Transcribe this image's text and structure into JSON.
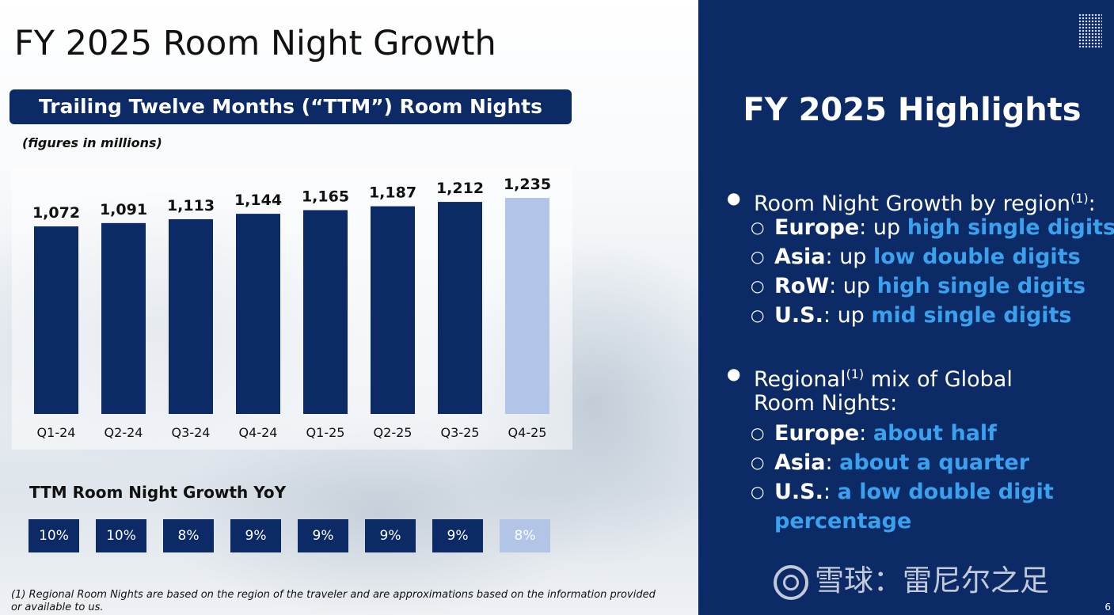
{
  "page": {
    "title": "FY 2025 Room Night Growth",
    "page_number": "6"
  },
  "chart_data": {
    "type": "bar",
    "title": "Trailing Twelve Months (“TTM”) Room Nights",
    "subtitle": "(figures in millions)",
    "categories": [
      "Q1-24",
      "Q2-24",
      "Q3-24",
      "Q4-24",
      "Q1-25",
      "Q2-25",
      "Q3-25",
      "Q4-25"
    ],
    "values": [
      1072,
      1091,
      1113,
      1144,
      1165,
      1187,
      1212,
      1235
    ],
    "value_labels": [
      "1,072",
      "1,091",
      "1,113",
      "1,144",
      "1,165",
      "1,187",
      "1,212",
      "1,235"
    ],
    "highlight_index": 7,
    "colors": {
      "bar": "#0c2b66",
      "highlight": "#b3c5e6"
    },
    "ylim": [
      0,
      1270
    ],
    "grid": false,
    "xlabel": "",
    "ylabel": ""
  },
  "yoy": {
    "title": "TTM Room Night Growth YoY",
    "values": [
      "10%",
      "10%",
      "8%",
      "9%",
      "9%",
      "9%",
      "9%",
      "8%"
    ]
  },
  "footnote": "(1) Regional Room Nights are based on the region of the traveler and are approximations based on the information provided or available to us.",
  "highlights": {
    "title": "FY 2025 Highlights",
    "bullet1": {
      "pre": "Room Night Growth by region",
      "sup": "(1)",
      "post": ":",
      "items": [
        {
          "region": "Europe",
          "sep": ": up ",
          "value": "high single digits"
        },
        {
          "region": "Asia",
          "sep": ": up ",
          "value": "low double digits"
        },
        {
          "region": "RoW",
          "sep": ": up ",
          "value": "high single digits"
        },
        {
          "region": "U.S.",
          "sep": ": up ",
          "value": "mid single digits"
        }
      ]
    },
    "bullet2": {
      "line1_pre": "Regional",
      "sup": "(1)",
      "line1_post": " mix of Global",
      "line2": "Room Nights:",
      "items": [
        {
          "region": "Europe",
          "sep": ": ",
          "value": "about half"
        },
        {
          "region": "Asia",
          "sep": ": ",
          "value": "about a quarter"
        },
        {
          "region": "U.S.",
          "sep": ": ",
          "value": "a low double digit"
        }
      ],
      "continuation": "percentage"
    }
  },
  "watermark": {
    "text": "雪球：雷尼尔之足"
  },
  "icons": {
    "bullet": "●",
    "sub_bullet": "○",
    "corner": "dot-grid-icon",
    "logo": "snowball-logo-icon"
  }
}
